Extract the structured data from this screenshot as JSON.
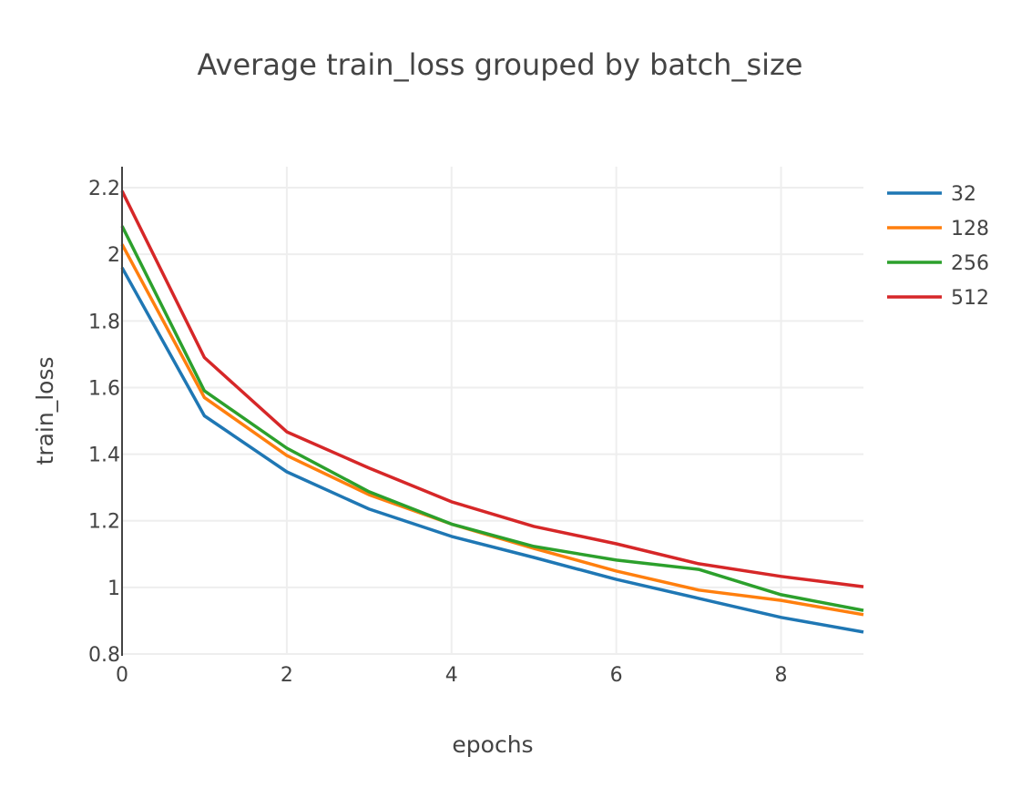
{
  "chart_data": {
    "type": "line",
    "title": "Average train_loss grouped by batch_size",
    "xlabel": "epochs",
    "ylabel": "train_loss",
    "xlim": [
      0,
      9
    ],
    "ylim": [
      0.8,
      2.263
    ],
    "xticks": [
      0,
      2,
      4,
      6,
      8
    ],
    "xtick_labels": [
      "0",
      "2",
      "4",
      "6",
      "8"
    ],
    "yticks": [
      0.8,
      1.0,
      1.2,
      1.4,
      1.6,
      1.8,
      2.0,
      2.2
    ],
    "ytick_labels": [
      "0.8",
      "1",
      "1.2",
      "1.4",
      "1.6",
      "1.8",
      "2",
      "2.2"
    ],
    "grid": true,
    "legend_position": "top-right",
    "x": [
      0,
      1,
      2,
      3,
      4,
      5,
      6,
      7,
      8,
      9
    ],
    "series": [
      {
        "name": "32",
        "color": "#1f77b4",
        "values": [
          1.96,
          1.515,
          1.347,
          1.235,
          1.153,
          1.09,
          1.024,
          0.967,
          0.91,
          0.866
        ]
      },
      {
        "name": "128",
        "color": "#ff7f0e",
        "values": [
          2.03,
          1.57,
          1.396,
          1.278,
          1.19,
          1.117,
          1.049,
          0.992,
          0.961,
          0.918
        ]
      },
      {
        "name": "256",
        "color": "#2ca02c",
        "values": [
          2.085,
          1.59,
          1.418,
          1.287,
          1.19,
          1.123,
          1.082,
          1.054,
          0.978,
          0.931
        ]
      },
      {
        "name": "512",
        "color": "#d62728",
        "values": [
          2.19,
          1.69,
          1.467,
          1.358,
          1.257,
          1.183,
          1.131,
          1.071,
          1.033,
          1.002
        ]
      }
    ]
  }
}
